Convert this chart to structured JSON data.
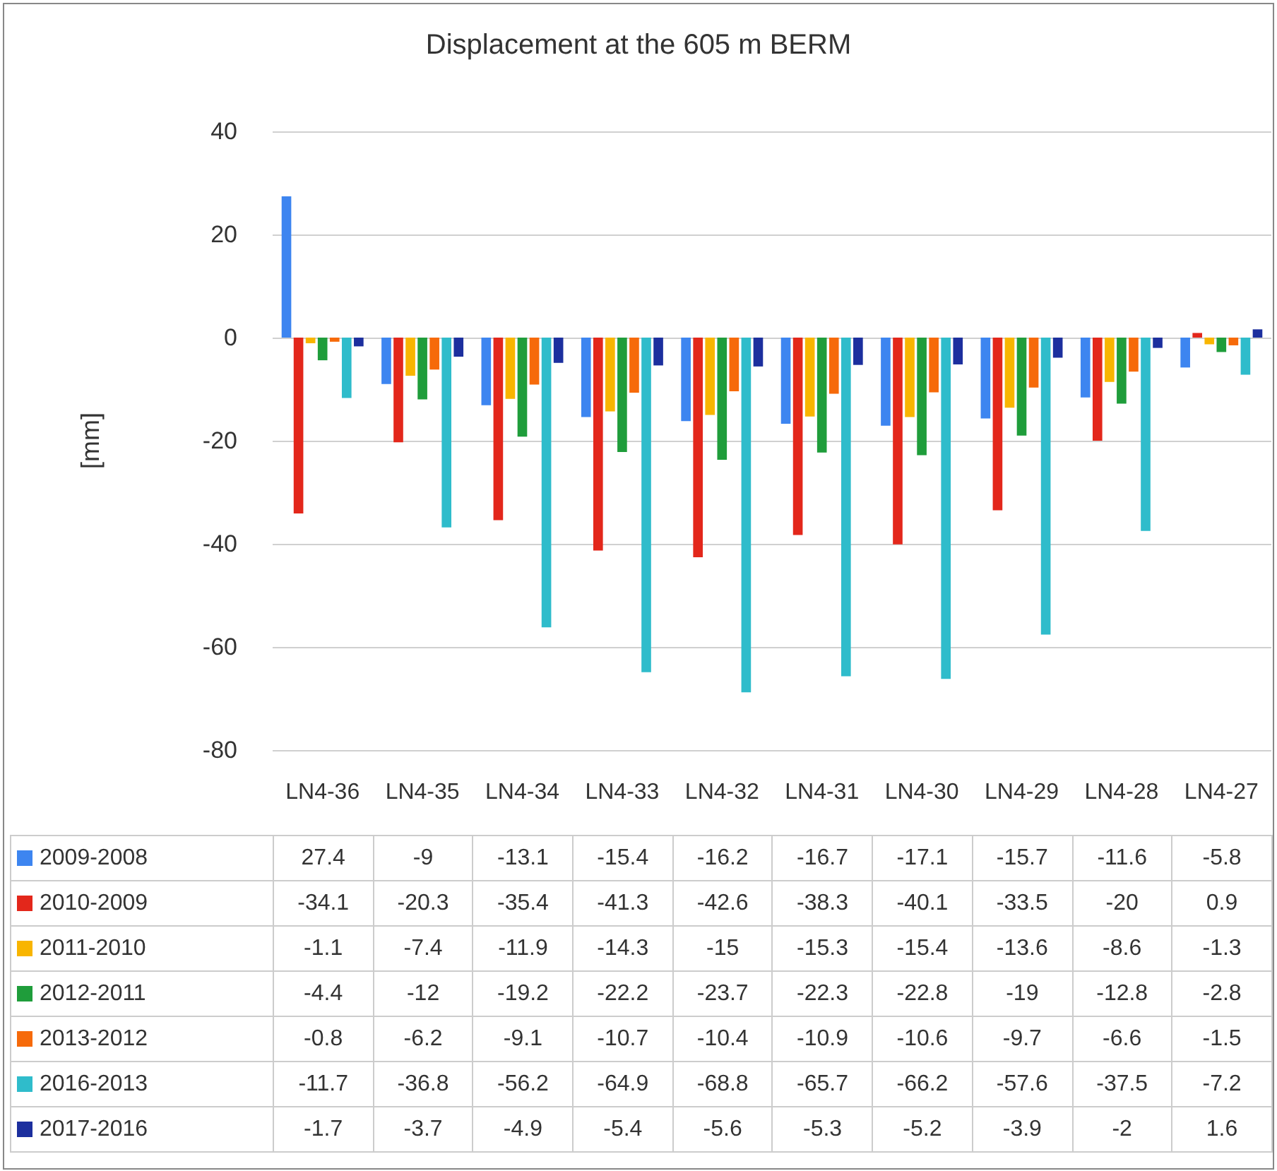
{
  "chart_data": {
    "type": "bar",
    "title": "Displacement at the 605 m BERM",
    "ylabel": "[mm]",
    "categories": [
      "LN4-36",
      "LN4-35",
      "LN4-34",
      "LN4-33",
      "LN4-32",
      "LN4-31",
      "LN4-30",
      "LN4-29",
      "LN4-28",
      "LN4-27"
    ],
    "series": [
      {
        "name": "2009-2008",
        "color": "#3d85f0",
        "values": [
          27.4,
          -9,
          -13.1,
          -15.4,
          -16.2,
          -16.7,
          -17.1,
          -15.7,
          -11.6,
          -5.8
        ]
      },
      {
        "name": "2010-2009",
        "color": "#e3271b",
        "values": [
          -34.1,
          -20.3,
          -35.4,
          -41.3,
          -42.6,
          -38.3,
          -40.1,
          -33.5,
          -20,
          0.9
        ]
      },
      {
        "name": "2011-2010",
        "color": "#f8b500",
        "values": [
          -1.1,
          -7.4,
          -11.9,
          -14.3,
          -15,
          -15.3,
          -15.4,
          -13.6,
          -8.6,
          -1.3
        ]
      },
      {
        "name": "2012-2011",
        "color": "#1f9d3b",
        "values": [
          -4.4,
          -12,
          -19.2,
          -22.2,
          -23.7,
          -22.3,
          -22.8,
          -19,
          -12.8,
          -2.8
        ]
      },
      {
        "name": "2013-2012",
        "color": "#f66a0a",
        "values": [
          -0.8,
          -6.2,
          -9.1,
          -10.7,
          -10.4,
          -10.9,
          -10.6,
          -9.7,
          -6.6,
          -1.5
        ]
      },
      {
        "name": "2016-2013",
        "color": "#2fbccb",
        "values": [
          -11.7,
          -36.8,
          -56.2,
          -64.9,
          -68.8,
          -65.7,
          -66.2,
          -57.6,
          -37.5,
          -7.2
        ]
      },
      {
        "name": "2017-2016",
        "color": "#1c2f9e",
        "values": [
          -1.7,
          -3.7,
          -4.9,
          -5.4,
          -5.6,
          -5.3,
          -5.2,
          -3.9,
          -2,
          1.6
        ]
      }
    ],
    "ylim": [
      -80,
      40
    ],
    "yticks": [
      -80,
      -60,
      -40,
      -20,
      0,
      20,
      40
    ],
    "grid": "y",
    "legend": "bottom",
    "data_labels": true
  }
}
